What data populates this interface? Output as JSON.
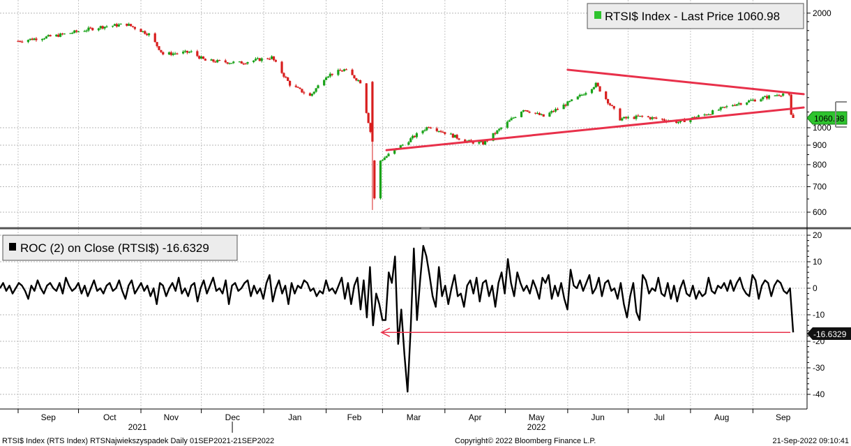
{
  "chart_data": [
    {
      "type": "candlestick",
      "title": "RTSI$ Index - Last Price 1060.98",
      "last_price_badge": "1060.98",
      "y_scale": "log",
      "ylim": [
        545,
        2100
      ],
      "y_ticks": [
        600,
        700,
        800,
        900,
        1000,
        2000
      ],
      "colors": {
        "up": "#1aa31a",
        "down": "#d81e1e",
        "trendline": "#e8304a",
        "badge": "#2ec42e"
      },
      "closes_approx": [
        {
          "date": "2021-09-01",
          "close": 1690
        },
        {
          "date": "2021-09-20",
          "close": 1745
        },
        {
          "date": "2021-10-12",
          "close": 1840
        },
        {
          "date": "2021-10-25",
          "close": 1870
        },
        {
          "date": "2021-11-05",
          "close": 1760
        },
        {
          "date": "2021-11-12",
          "close": 1560
        },
        {
          "date": "2021-11-26",
          "close": 1580
        },
        {
          "date": "2021-12-03",
          "close": 1500
        },
        {
          "date": "2021-12-20",
          "close": 1480
        },
        {
          "date": "2022-01-05",
          "close": 1530
        },
        {
          "date": "2022-01-14",
          "close": 1300
        },
        {
          "date": "2022-01-24",
          "close": 1210
        },
        {
          "date": "2022-02-01",
          "close": 1370
        },
        {
          "date": "2022-02-10",
          "close": 1420
        },
        {
          "date": "2022-02-18",
          "close": 1320
        },
        {
          "date": "2022-02-24",
          "close": 920
        },
        {
          "date": "2022-02-25",
          "close": 650
        },
        {
          "date": "2022-02-28",
          "close": 820
        },
        {
          "date": "2022-03-24",
          "close": 1010
        },
        {
          "date": "2022-04-12",
          "close": 920
        },
        {
          "date": "2022-04-20",
          "close": 910
        },
        {
          "date": "2022-05-10",
          "close": 1120
        },
        {
          "date": "2022-05-20",
          "close": 1070
        },
        {
          "date": "2022-06-06",
          "close": 1200
        },
        {
          "date": "2022-06-15",
          "close": 1300
        },
        {
          "date": "2022-06-27",
          "close": 1055
        },
        {
          "date": "2022-07-08",
          "close": 1070
        },
        {
          "date": "2022-07-26",
          "close": 1035
        },
        {
          "date": "2022-08-10",
          "close": 1090
        },
        {
          "date": "2022-08-22",
          "close": 1150
        },
        {
          "date": "2022-09-16",
          "close": 1230
        },
        {
          "date": "2022-09-19",
          "close": 1210
        },
        {
          "date": "2022-09-20",
          "close": 1075
        },
        {
          "date": "2022-09-21",
          "close": 1060.98
        }
      ],
      "trendlines": [
        {
          "from": {
            "date": "2022-06-01",
            "value": 1420
          },
          "to": {
            "date": "2022-09-21",
            "value": 1225
          }
        },
        {
          "from": {
            "date": "2022-03-03",
            "value": 873
          },
          "to": {
            "date": "2022-09-21",
            "value": 1130
          }
        }
      ]
    },
    {
      "type": "line",
      "title": "ROC (2)  on Close (RTSI$) -16.6329",
      "series": [
        {
          "name": "ROC (2) on Close (RTSI$)",
          "last_value": -16.6329,
          "last_value_label": "-16.6329",
          "color": "#000000",
          "values": [
            0,
            2,
            -1,
            1,
            -2,
            0,
            2,
            1,
            -1,
            -4,
            1,
            -1,
            3,
            0,
            -2,
            1,
            2,
            0,
            -1,
            2,
            -2,
            4,
            1,
            -1,
            0,
            2,
            -2,
            1,
            -3,
            0,
            3,
            -1,
            0,
            -2,
            1,
            2,
            -1,
            0,
            3,
            -1,
            -4,
            1,
            3,
            -2,
            0,
            2,
            -1,
            1,
            -3,
            0,
            -6,
            2,
            1,
            -3,
            0,
            2,
            -1,
            4,
            -2,
            0,
            -3,
            1,
            2,
            -5,
            0,
            3,
            -2,
            1,
            4,
            -1,
            0,
            -2,
            3,
            -6,
            1,
            2,
            -1,
            0,
            2,
            3,
            -3,
            1,
            -2,
            0,
            -4,
            2,
            5,
            -5,
            0,
            3,
            -2,
            1,
            -6,
            2,
            -2,
            1,
            0,
            3,
            2,
            -1,
            0,
            -3,
            -1,
            -2,
            3,
            -1,
            0,
            -2,
            1,
            4,
            -4,
            2,
            -6,
            1,
            4,
            -8,
            3,
            -11,
            8,
            -14,
            -2,
            -6,
            -12,
            -12,
            6,
            2,
            12,
            -21,
            -8,
            -25,
            -39,
            -15,
            15,
            -12,
            3,
            16,
            12,
            5,
            -3,
            -7,
            8,
            -3,
            1,
            -6,
            0,
            5,
            -3,
            -2,
            -7,
            1,
            3,
            -2,
            4,
            -5,
            2,
            3,
            -3,
            1,
            -7,
            2,
            6,
            -2,
            11,
            2,
            -3,
            6,
            2,
            -1,
            1,
            -2,
            3,
            0,
            -4,
            4,
            2,
            5,
            -4,
            1,
            -3,
            2,
            -4,
            -8,
            7,
            1,
            0,
            3,
            -1,
            2,
            5,
            -2,
            0,
            4,
            -3,
            2,
            3,
            -1,
            0,
            -4,
            2,
            -6,
            -11,
            -3,
            2,
            -9,
            -12,
            5,
            3,
            -2,
            0,
            -1,
            4,
            -2,
            -3,
            2,
            -4,
            1,
            -5,
            0,
            3,
            -2,
            -3,
            1,
            -4,
            -1,
            -3,
            -2,
            4,
            -1,
            -2,
            1,
            0,
            2,
            -1,
            3,
            -1,
            2,
            4,
            0,
            -2,
            -3,
            5,
            3,
            -4,
            1,
            3,
            2,
            -3,
            1,
            3,
            2,
            -1,
            -2,
            0,
            -16.6329
          ]
        }
      ],
      "ylim": [
        -45,
        22
      ],
      "y_ticks": [
        20,
        10,
        0,
        -10,
        -20,
        -30,
        -40
      ],
      "annotation": {
        "type": "arrow",
        "from_date": "2022-09-21",
        "to_date": "2022-02-25",
        "value": -16.6329,
        "color": "#e8304a"
      }
    }
  ],
  "x_axis": {
    "months": [
      "Sep",
      "Oct",
      "Nov",
      "Dec",
      "Jan",
      "Feb",
      "Mar",
      "Apr",
      "May",
      "Jun",
      "Jul",
      "Aug",
      "Sep"
    ],
    "years": [
      "2021",
      "2022"
    ]
  },
  "footer": {
    "left": "RTSI$ Index (RTS Index) RTSNajwiekszyspadek  Daily 01SEP2021-21SEP2022",
    "center": "Copyright© 2022 Bloomberg Finance L.P.",
    "right": "21-Sep-2022 09:10:41"
  }
}
